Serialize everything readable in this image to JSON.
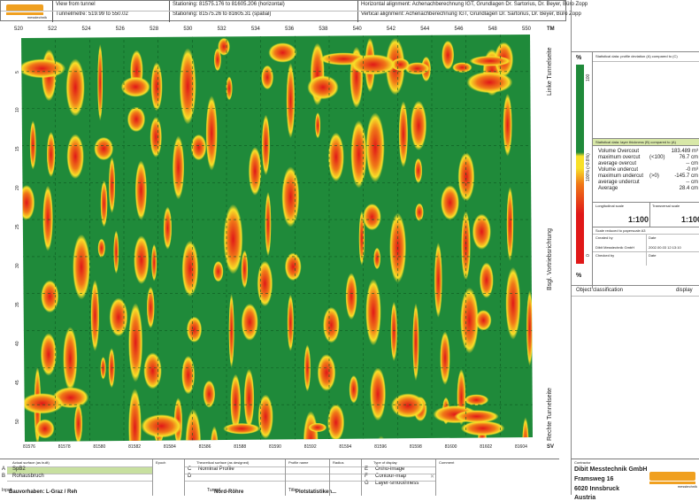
{
  "header": {
    "view_label": "View from tunnel",
    "tunnelmetre": "Tunnelmetre: 519.99 to 550.02",
    "stationing_h": "Stationing: 81575.176 to 81605.206 (horizontal)",
    "stationing_s": "Stationing: 81575.26 to 81605.31 (spatial)",
    "h_alignment": "Horizontal alignment: Achenachberechnung IGT, Grundlagen Dr. Sartorius, Dr. Beyer, Büro Zopp",
    "v_alignment": "Vertical alignment: Achenachberechnung IGT, Grundlagen Dr. Sartorius, Dr. Beyer, Büro Zopp"
  },
  "map": {
    "top_ticks": [
      "520",
      "522",
      "524",
      "526",
      "528",
      "530",
      "532",
      "534",
      "536",
      "538",
      "540",
      "542",
      "544",
      "546",
      "548",
      "550"
    ],
    "bottom_ticks": [
      "81576",
      "81578",
      "81580",
      "81582",
      "81584",
      "81586",
      "81588",
      "81590",
      "81592",
      "81594",
      "81596",
      "81598",
      "81600",
      "81602",
      "81604"
    ],
    "left_ticks": [
      "5",
      "10",
      "15",
      "20",
      "25",
      "30",
      "35",
      "40",
      "45",
      "50"
    ],
    "corner_tm": "TM",
    "corner_sv": "SV",
    "side_top": "Linke Tunnelseite",
    "side_mid": "Bsgl. Vortriebsrichtung",
    "side_bottom": "Rechte Tunnelseite"
  },
  "legend": {
    "unit": "%",
    "unit_bottom": "%",
    "scale_top": "100",
    "scale_mid": "100% (>0.8%)",
    "scale_bottom": "0"
  },
  "stats": {
    "profile_title": "Statistical data: profile deviation (A) compared to (C)",
    "layer_title": "Statistical data: layer thickness (B) compared to (A)",
    "rows": [
      {
        "label": "Volume Overcout",
        "cond": "",
        "value": "183.489 m³"
      },
      {
        "label": "maximum overcut",
        "cond": "(<100)",
        "value": "76.7 cm"
      },
      {
        "label": "average overcut",
        "cond": "",
        "value": "-- cm"
      },
      {
        "label": "Volume undercut",
        "cond": "",
        "value": "-0 m³"
      },
      {
        "label": "maximum undercut",
        "cond": "(>0)",
        "value": "-145.7 cm"
      },
      {
        "label": "average undercut",
        "cond": "",
        "value": "-- cm"
      },
      {
        "label": "Average",
        "cond": "",
        "value": "28.4 cm"
      }
    ],
    "long_scale_label": "Longitudinal scale",
    "long_scale": "1:100",
    "trans_scale_label": "Transversal scale",
    "trans_scale": "1:100",
    "scale_reduced": "Scale reduced to paperscale A3",
    "created_by_label": "Created by",
    "created_by": "Dibit Messtechnik GmbH",
    "date_label": "Date",
    "date_value": "2002.00.03 12:13:10",
    "checked_by_label": "Checked by",
    "date2_label": "Date",
    "object_classification": "Object classification",
    "display": "display"
  },
  "bottom": {
    "actual_surface": "Actual surface (as built)",
    "epoch": "Epoch",
    "theoretical": "Theoretical surface (as designed)",
    "profile_name": "Profile name",
    "radius": "Radius",
    "type_display": "Type of display",
    "comment": "Comment",
    "rows": [
      {
        "letter": "A",
        "name": "SpB2",
        "letter2": "C",
        "name2": "Nominal Profile",
        "letter3": "E",
        "name3": "Ortho-image"
      },
      {
        "letter": "B",
        "name": "Rohausbruch",
        "letter2": "D",
        "name2": "",
        "letter3": "F",
        "name3": "Contour-map"
      },
      {
        "letter": "",
        "name": "",
        "letter2": "",
        "name2": "",
        "letter3": "G",
        "name3": "Layer-smoothness"
      }
    ],
    "input_label": "Input",
    "input_value": "Bauvorhaben: L-Graz / Reh",
    "tunnel_label": "Tunnel",
    "tunnel_value": "Nord-Röhre",
    "title_label": "Title",
    "title_value": "Plotstatistiken..."
  },
  "contractor": {
    "label": "Contractor",
    "name": "Dibit Messtechnik GmbH",
    "street": "Framsweg 16",
    "city": "6020 Innsbruck",
    "country": "Austria"
  },
  "logo_subtext": "messtechnik",
  "colors": {
    "green": "#1f8a3a",
    "red": "#e02020",
    "orange": "#f07818",
    "yellow": "#f8e028",
    "brand": "#f0a020"
  }
}
